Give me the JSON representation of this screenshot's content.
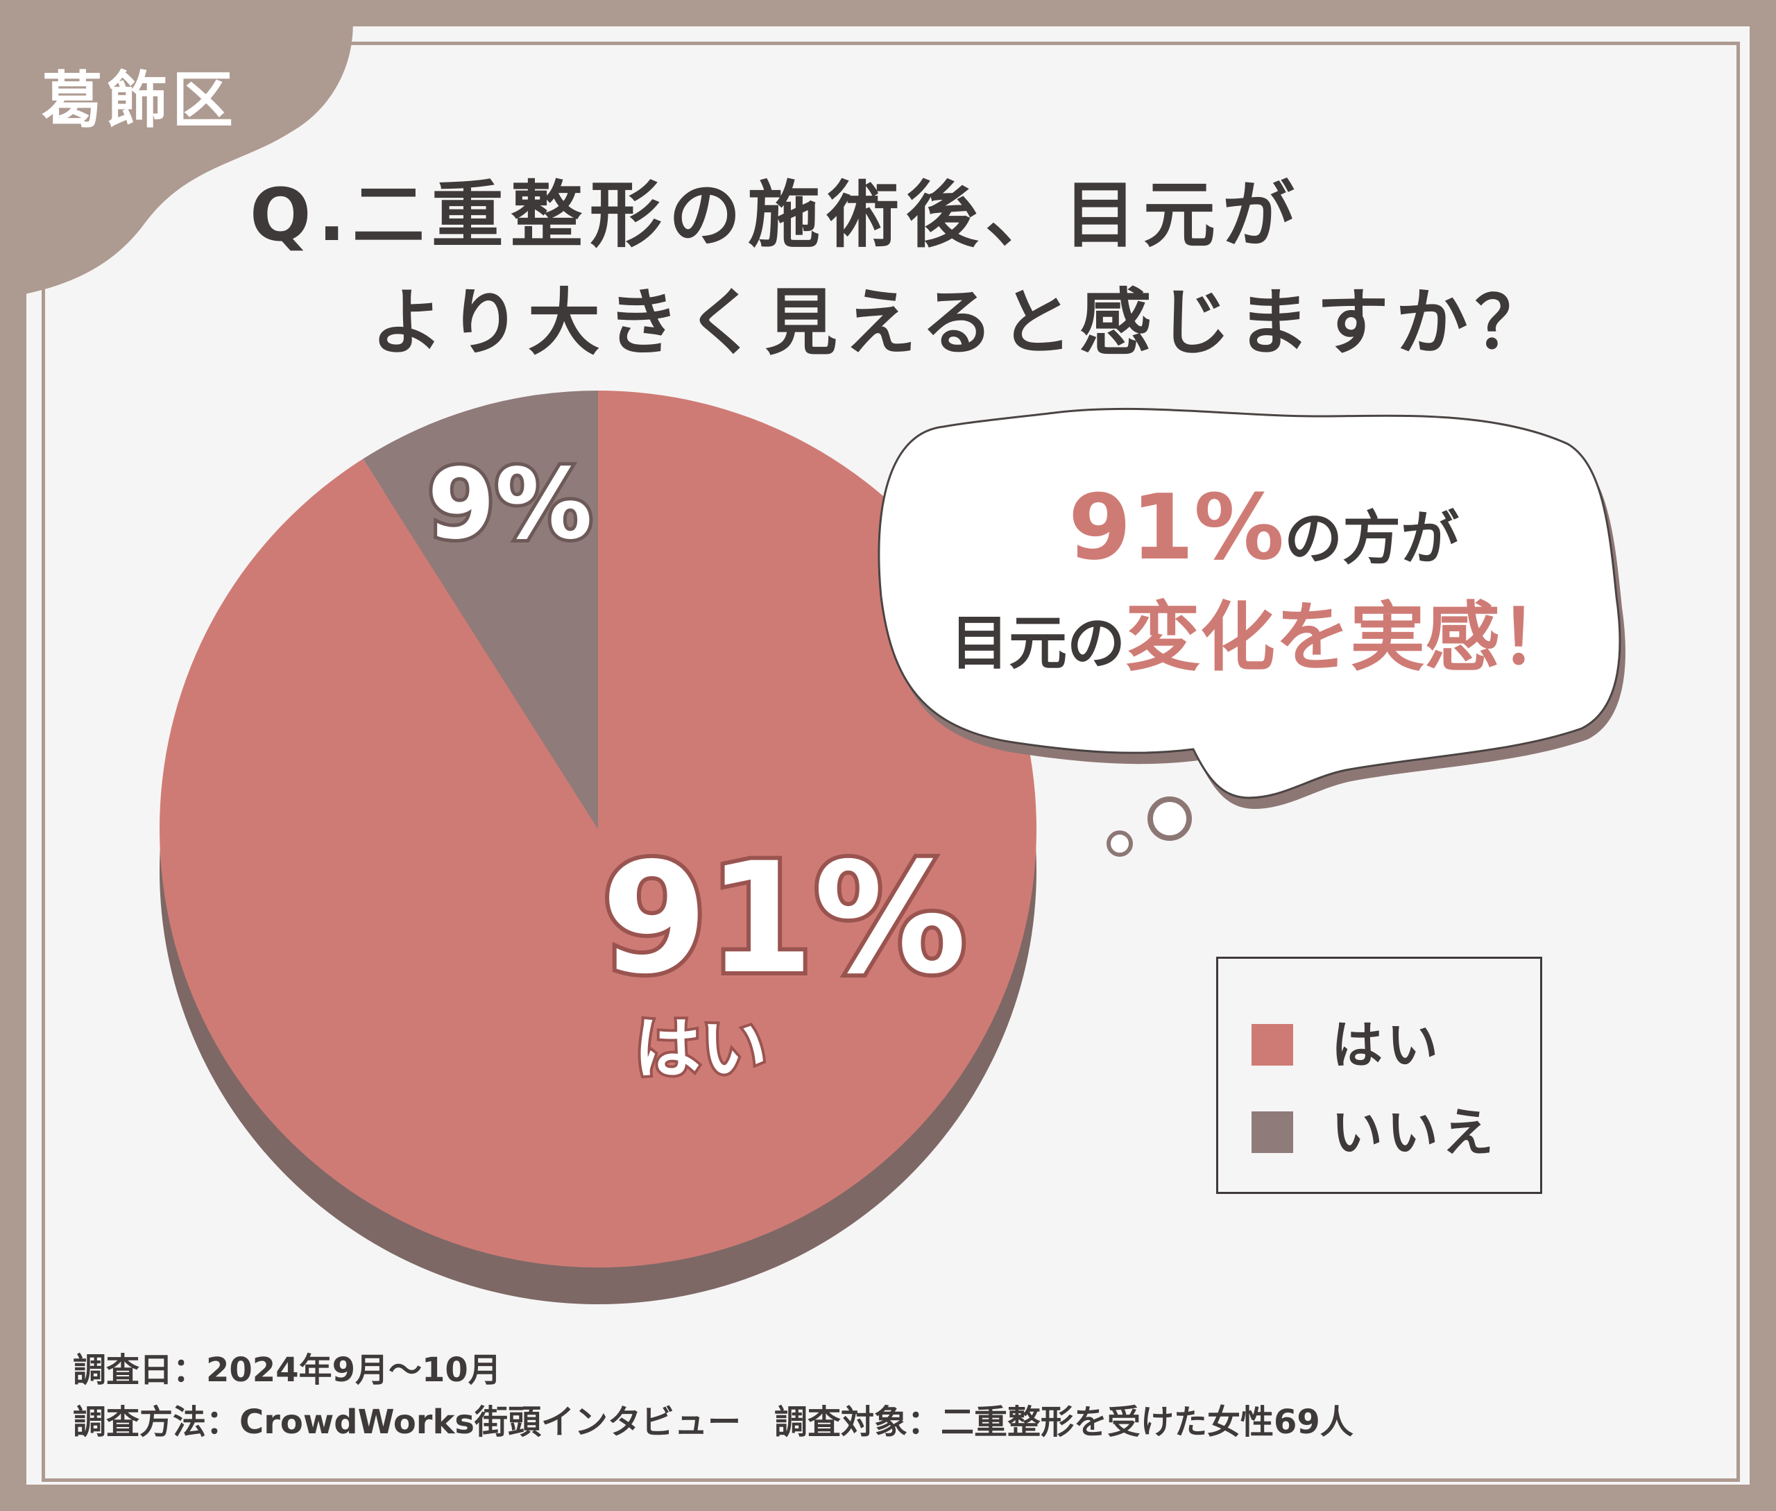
{
  "region": "葛飾区",
  "title": {
    "line1": "Q.二重整形の施術後、目元が",
    "line2": "より大きく見えると感じますか？"
  },
  "callout": {
    "percent": "91%",
    "line1_rest": "の方が",
    "line2_prefix": "目元の",
    "line2_emphasis": "変化を実感！"
  },
  "colors": {
    "yes": "#cf7b75",
    "no": "#8f7b7a",
    "shadow": "#7d6866",
    "text": "#3e3a39",
    "frame": "#ad9a90"
  },
  "chart_data": {
    "type": "pie",
    "title": "Q.二重整形の施術後、目元がより大きく見えると感じますか？",
    "slices": [
      {
        "label": "はい",
        "value": 91,
        "value_label": "91%"
      },
      {
        "label": "いいえ",
        "value": 9,
        "value_label": "9%"
      }
    ],
    "legend": [
      "はい",
      "いいえ"
    ],
    "legend_position": "right"
  },
  "footer": {
    "line1": "調査日：2024年9月～10月",
    "line2": "調査方法：CrowdWorks街頭インタビュー　調査対象：二重整形を受けた女性69人"
  }
}
